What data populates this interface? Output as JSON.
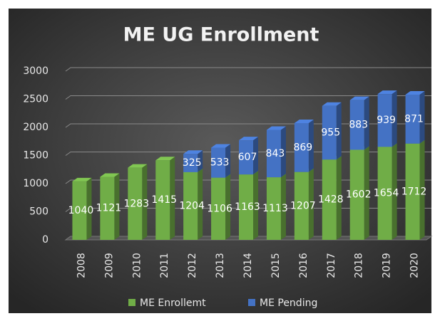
{
  "chart_data": {
    "type": "stacked_bar",
    "title": "ME UG Enrollment",
    "categories": [
      "2008",
      "2009",
      "2010",
      "2011",
      "2012",
      "2013",
      "2014",
      "2015",
      "2016",
      "2017",
      "2018",
      "2019",
      "2020"
    ],
    "series": [
      {
        "name": "ME Enrollemt",
        "color": "#70ad47",
        "values": [
          1040,
          1121,
          1283,
          1415,
          1204,
          1106,
          1163,
          1113,
          1207,
          1428,
          1602,
          1654,
          1712
        ]
      },
      {
        "name": "ME Pending",
        "color": "#4472c4",
        "values": [
          null,
          null,
          null,
          null,
          325,
          533,
          607,
          843,
          869,
          955,
          883,
          939,
          871
        ]
      }
    ],
    "ylim": [
      0,
      3000
    ],
    "yticks": [
      0,
      500,
      1000,
      1500,
      2000,
      2500,
      3000
    ],
    "grid": true,
    "legend": "bottom"
  }
}
